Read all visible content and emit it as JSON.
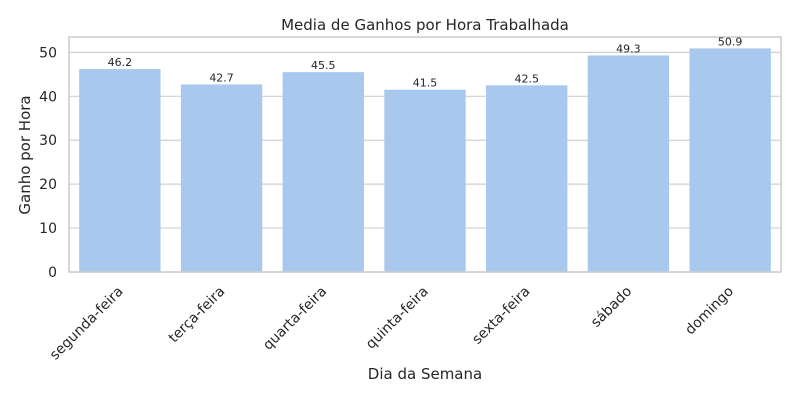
{
  "chart_data": {
    "type": "bar",
    "title": "Media de Ganhos por Hora Trabalhada",
    "xlabel": "Dia da Semana",
    "ylabel": "Ganho por Hora",
    "categories": [
      "segunda-feira",
      "terça-feira",
      "quarta-feira",
      "quinta-feira",
      "sexta-feira",
      "sábado",
      "domingo"
    ],
    "values": [
      46.2,
      42.7,
      45.5,
      41.5,
      42.5,
      49.3,
      50.9
    ],
    "value_labels": [
      "46.2",
      "42.7",
      "45.5",
      "41.5",
      "42.5",
      "49.3",
      "50.9"
    ],
    "ylim": [
      0,
      53.5
    ],
    "yticks": [
      0,
      10,
      20,
      30,
      40,
      50
    ],
    "grid": true,
    "bar_color": "#a8c8ee"
  }
}
